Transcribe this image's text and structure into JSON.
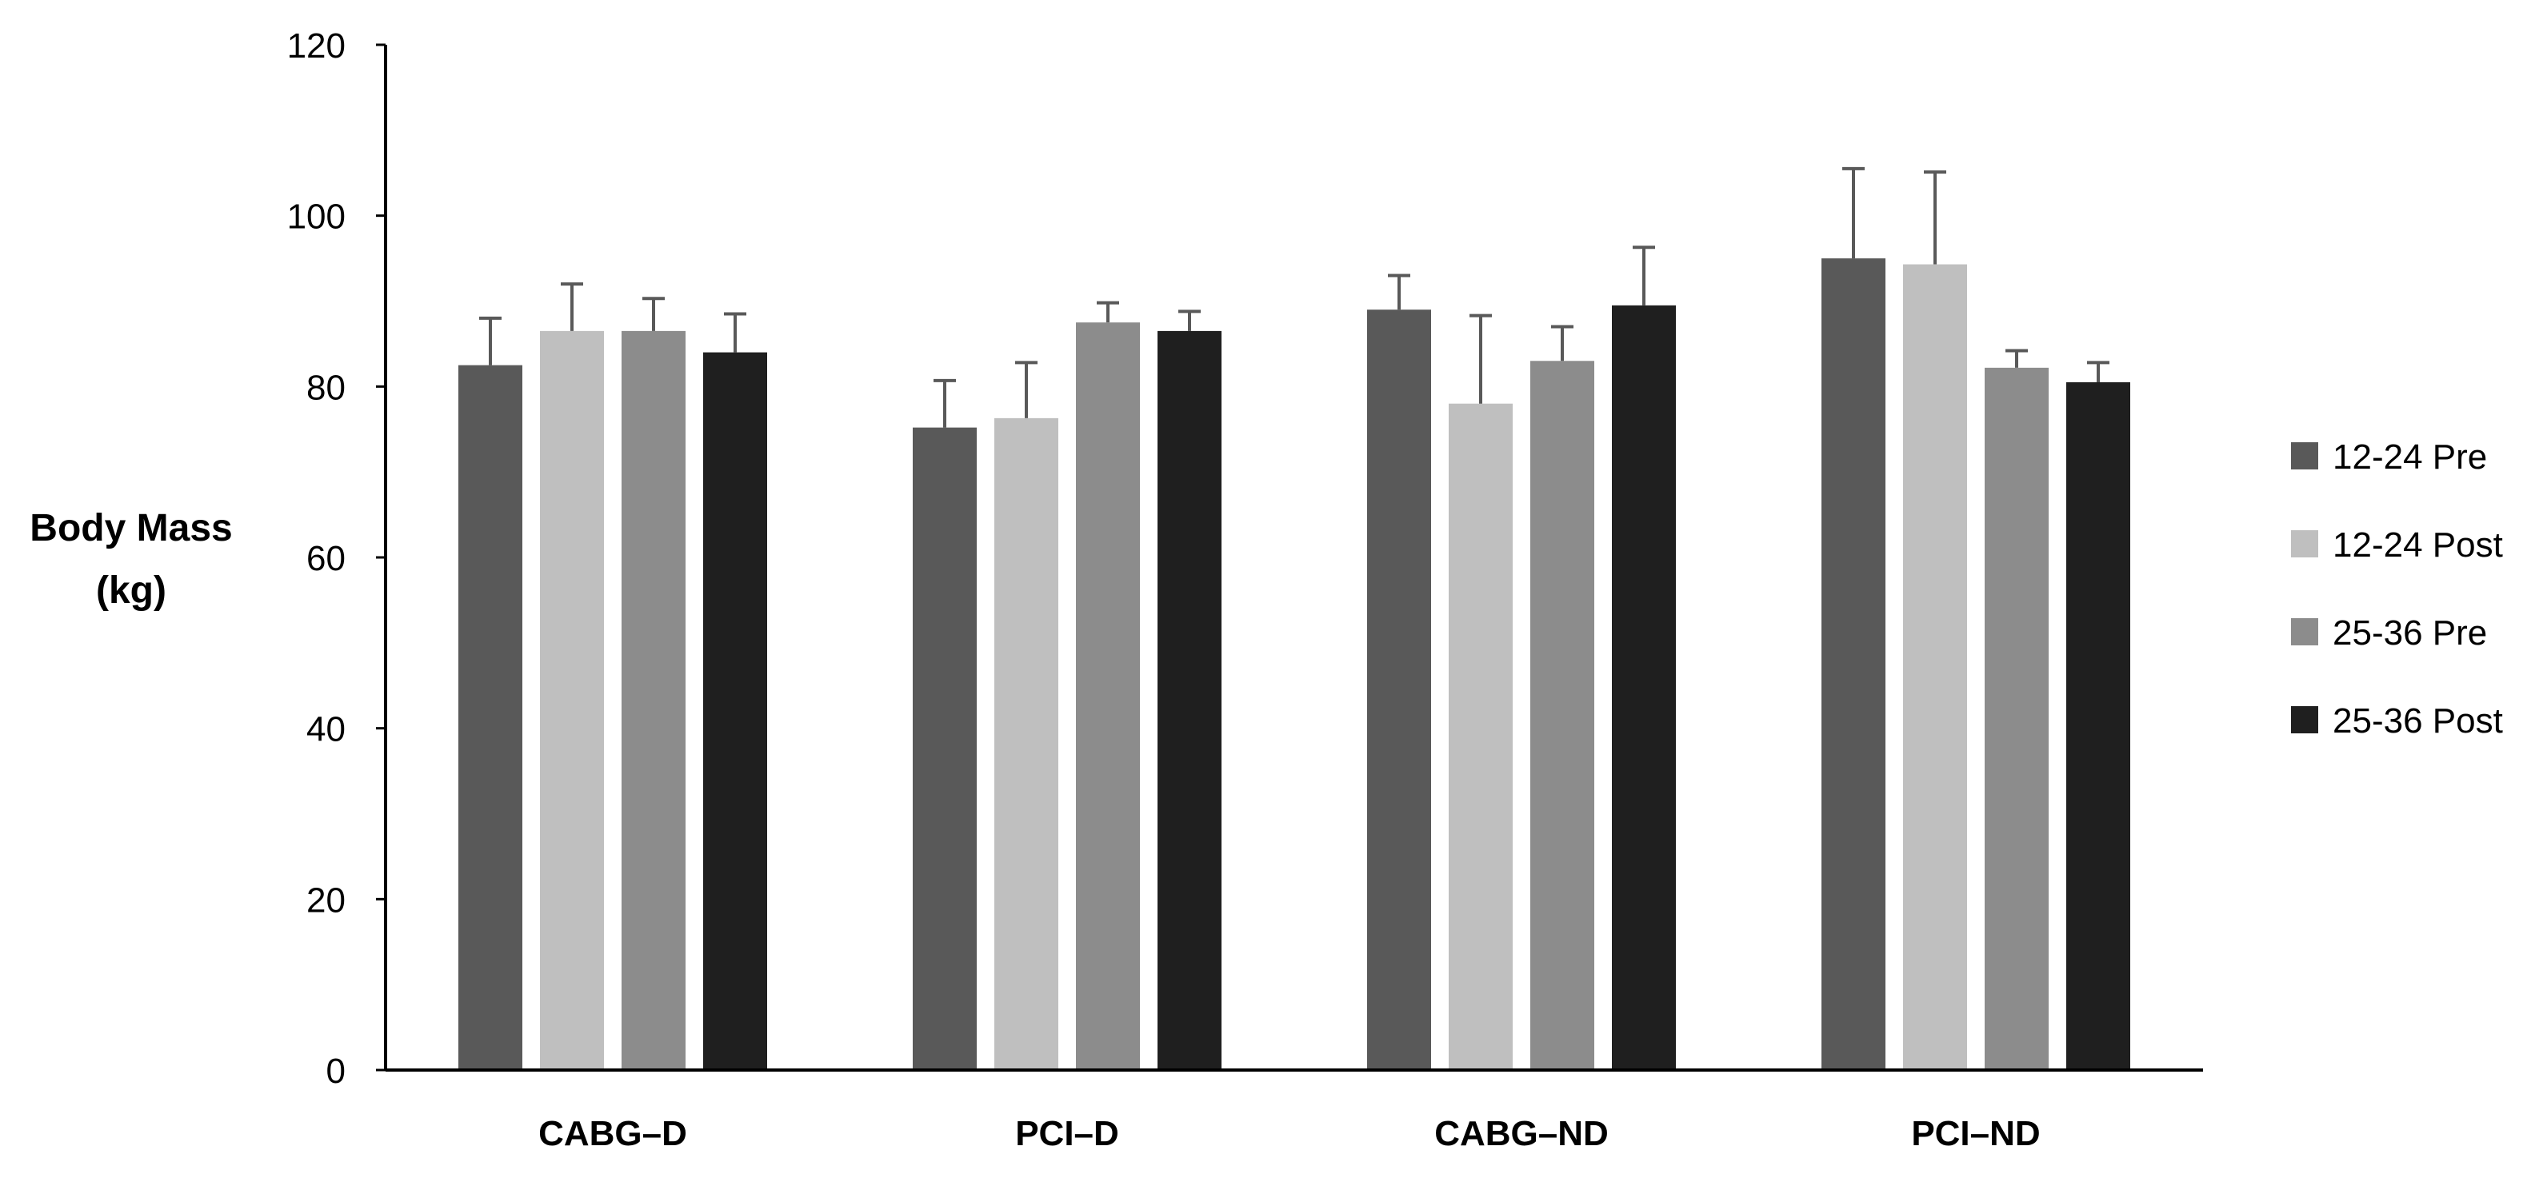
{
  "chart_data": {
    "type": "bar",
    "title": "",
    "xlabel": "",
    "ylabel": [
      "Body Mass",
      "(kg)"
    ],
    "ylim": [
      0,
      120
    ],
    "yticks": [
      0,
      20,
      40,
      60,
      80,
      100,
      120
    ],
    "grid": false,
    "legend_position": "right",
    "categories": [
      "CABG–D",
      "PCI–D",
      "CABG–ND",
      "PCI–ND"
    ],
    "series": [
      {
        "name": "12-24 Pre",
        "color": "#595959",
        "values": [
          82.5,
          75.2,
          89.0,
          95.0
        ],
        "errors": [
          5.5,
          5.5,
          4.0,
          10.5
        ]
      },
      {
        "name": "12-24 Post",
        "color": "#bfbfbf",
        "values": [
          86.5,
          76.3,
          78.0,
          94.3
        ],
        "errors": [
          5.5,
          6.5,
          10.3,
          10.8
        ]
      },
      {
        "name": "25-36 Pre",
        "color": "#8c8c8c",
        "values": [
          86.5,
          87.5,
          83.0,
          82.2
        ],
        "errors": [
          3.8,
          2.3,
          4.0,
          2.0
        ]
      },
      {
        "name": "25-36 Post",
        "color": "#1f1f1f",
        "values": [
          84.0,
          86.5,
          89.5,
          80.5
        ],
        "errors": [
          4.5,
          2.3,
          6.8,
          2.3
        ]
      }
    ]
  }
}
